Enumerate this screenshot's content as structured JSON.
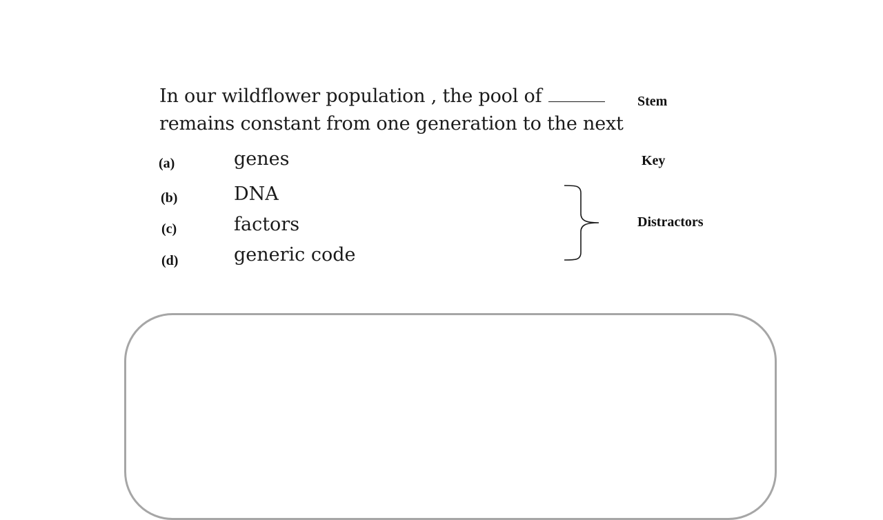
{
  "question": {
    "stem_line_1": "In our wildflower population , the pool of",
    "stem_line_2": "remains constant from one generation to the next"
  },
  "options": [
    {
      "letter": "(a)",
      "text": "genes"
    },
    {
      "letter": "(b)",
      "text": "DNA"
    },
    {
      "letter": "(c)",
      "text": "factors"
    },
    {
      "letter": "(d)",
      "text": "generic code"
    }
  ],
  "labels": {
    "stem": "Stem",
    "key": "Key",
    "distractors": "Distractors"
  }
}
